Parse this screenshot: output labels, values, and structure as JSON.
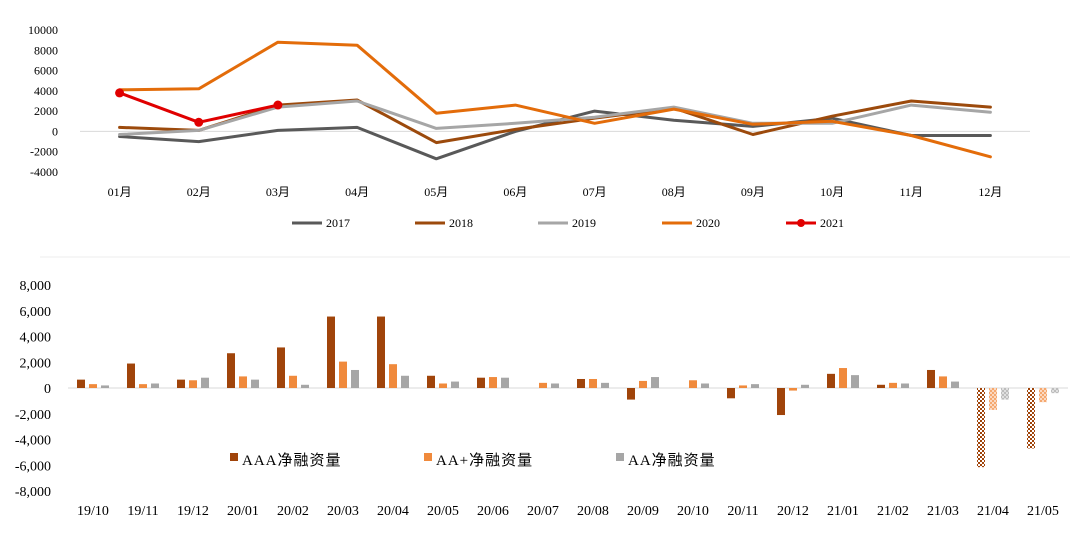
{
  "chart_data": [
    {
      "type": "line",
      "categories": [
        "01月",
        "02月",
        "03月",
        "04月",
        "05月",
        "06月",
        "07月",
        "08月",
        "09月",
        "10月",
        "11月",
        "12月"
      ],
      "ylim": [
        -4000,
        10000
      ],
      "yticks": [
        -4000,
        -2000,
        0,
        2000,
        4000,
        6000,
        8000,
        10000
      ],
      "ytick_labels": [
        "-4000",
        "-2000",
        "0",
        "2000",
        "4000",
        "6000",
        "8000",
        "10000"
      ],
      "grid": false,
      "legend_position": "bottom",
      "series": [
        {
          "name": "2017",
          "color": "#595959",
          "marker": false,
          "values": [
            -500,
            -1000,
            100,
            400,
            -2700,
            0,
            2000,
            1100,
            500,
            1300,
            -400,
            -400
          ]
        },
        {
          "name": "2018",
          "color": "#9c4a0c",
          "marker": false,
          "values": [
            400,
            100,
            2600,
            3100,
            -1100,
            200,
            1300,
            2300,
            -300,
            1500,
            3000,
            2400
          ]
        },
        {
          "name": "2019",
          "color": "#a6a6a6",
          "marker": false,
          "values": [
            -300,
            100,
            2400,
            3000,
            300,
            800,
            1400,
            2400,
            800,
            800,
            2600,
            1900
          ]
        },
        {
          "name": "2020",
          "color": "#e36c0a",
          "marker": false,
          "values": [
            4100,
            4200,
            8800,
            8500,
            1800,
            2600,
            800,
            2200,
            700,
            1000,
            -400,
            -2500
          ]
        },
        {
          "name": "2021",
          "color": "#e00000",
          "marker": true,
          "values": [
            3800,
            900,
            2600,
            null,
            null,
            null,
            null,
            null,
            null,
            null,
            null,
            null
          ]
        }
      ]
    },
    {
      "type": "bar",
      "categories": [
        "19/10",
        "19/11",
        "19/12",
        "20/01",
        "20/02",
        "20/03",
        "20/04",
        "20/05",
        "20/06",
        "20/07",
        "20/08",
        "20/09",
        "20/10",
        "20/11",
        "20/12",
        "21/01",
        "21/02",
        "21/03",
        "21/04",
        "21/05"
      ],
      "ylim": [
        -8000,
        8000
      ],
      "yticks": [
        -8000,
        -6000,
        -4000,
        -2000,
        0,
        2000,
        4000,
        6000,
        8000
      ],
      "ytick_labels": [
        "-8,000",
        "-6,000",
        "-4,000",
        "-2,000",
        "0",
        "2,000",
        "4,000",
        "6,000",
        "8,000"
      ],
      "grid": false,
      "legend_position": "lower-left inside plot",
      "faded_categories": [
        "21/04",
        "21/05"
      ],
      "series": [
        {
          "name": "AAA净融资量",
          "color": "#a0440a",
          "values": [
            650,
            1900,
            650,
            2700,
            3150,
            5550,
            5550,
            950,
            800,
            0,
            700,
            -900,
            0,
            -800,
            -2100,
            1100,
            250,
            1400,
            -6150,
            -4700
          ]
        },
        {
          "name": "AA+净融资量",
          "color": "#f08a3c",
          "values": [
            300,
            300,
            600,
            900,
            950,
            2050,
            1850,
            350,
            850,
            400,
            700,
            550,
            600,
            200,
            -200,
            1550,
            400,
            900,
            -1700,
            -1100
          ]
        },
        {
          "name": "AA净融资量",
          "color": "#a6a6a6",
          "values": [
            200,
            350,
            800,
            650,
            250,
            1400,
            950,
            500,
            800,
            350,
            400,
            850,
            350,
            300,
            250,
            1000,
            350,
            500,
            -900,
            -400
          ]
        }
      ]
    }
  ]
}
